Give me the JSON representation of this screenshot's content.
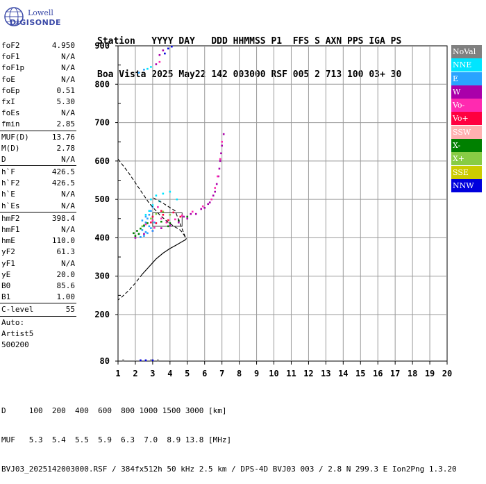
{
  "logo": {
    "top": "Lowell",
    "bottom": "DIGISONDE"
  },
  "header": {
    "line1": "Station   YYYY DAY   DDD HHMMSS P1  FFS S AXN PPS IGA PS",
    "line2": "Boa Vista 2025 May22 142 003000 RSF 005 2 713 100 03+ 30"
  },
  "params": {
    "group1": [
      {
        "label": "foF2",
        "value": "4.950"
      },
      {
        "label": "foF1",
        "value": "N/A"
      },
      {
        "label": "foF1p",
        "value": "N/A"
      },
      {
        "label": "foE",
        "value": "N/A"
      },
      {
        "label": "foEp",
        "value": "0.51"
      },
      {
        "label": "fxI",
        "value": "5.30"
      },
      {
        "label": "foEs",
        "value": "N/A"
      },
      {
        "label": "fmin",
        "value": "2.85"
      }
    ],
    "group2": [
      {
        "label": "MUF(D)",
        "value": "13.76"
      },
      {
        "label": "M(D)",
        "value": "2.78"
      },
      {
        "label": "D",
        "value": "N/A"
      }
    ],
    "group3": [
      {
        "label": "h`F",
        "value": "426.5"
      },
      {
        "label": "h`F2",
        "value": "426.5"
      },
      {
        "label": "h`E",
        "value": "N/A"
      },
      {
        "label": "h`Es",
        "value": "N/A"
      }
    ],
    "group4": [
      {
        "label": "hmF2",
        "value": "398.4"
      },
      {
        "label": "hmF1",
        "value": "N/A"
      },
      {
        "label": "hmE",
        "value": "110.0"
      },
      {
        "label": "yF2",
        "value": "61.3"
      },
      {
        "label": "yF1",
        "value": "N/A"
      },
      {
        "label": "yE",
        "value": "20.0"
      },
      {
        "label": "B0",
        "value": "85.6"
      },
      {
        "label": "B1",
        "value": "1.00"
      }
    ],
    "group5": [
      {
        "label": "C-level",
        "value": "55"
      }
    ]
  },
  "auto": {
    "line1": "Auto:",
    "line2": "Artist5",
    "line3": "500200"
  },
  "legend": [
    {
      "label": "NoVal",
      "color": "#808080"
    },
    {
      "label": "NNE",
      "color": "#00e5ff"
    },
    {
      "label": "E",
      "color": "#29a3ff"
    },
    {
      "label": "W",
      "color": "#aa00aa"
    },
    {
      "label": "Vo-",
      "color": "#ff2ab0"
    },
    {
      "label": "Vo+",
      "color": "#ff0040"
    },
    {
      "label": "SSW",
      "color": "#ffb0b0"
    },
    {
      "label": "X-",
      "color": "#008000"
    },
    {
      "label": "X+",
      "color": "#88cc44"
    },
    {
      "label": "SSE",
      "color": "#cccc00"
    },
    {
      "label": "NNW",
      "color": "#0000dd"
    }
  ],
  "footer": {
    "row1": "D     100  200  400  600  800 1000 1500 3000 [km]",
    "row2": "MUF   5.3  5.4  5.5  5.9  6.3  7.0  8.9 13.8 [MHz]",
    "row3": "BVJ03_2025142003000.RSF / 384fx512h 50 kHz 2.5 km / DPS-4D BVJ03 003 / 2.8 N 299.3 E Ion2Png 1.3.20"
  },
  "chart_data": {
    "type": "scatter",
    "title": "",
    "xlabel": "",
    "ylabel": "",
    "xlim": [
      1,
      20
    ],
    "ylim": [
      80,
      900
    ],
    "x_ticks": [
      1,
      2,
      3,
      4,
      5,
      6,
      7,
      8,
      9,
      10,
      11,
      12,
      13,
      14,
      15,
      16,
      17,
      18,
      19,
      20
    ],
    "y_ticks": [
      80,
      200,
      300,
      400,
      500,
      600,
      700,
      800,
      900
    ],
    "grid": true,
    "series": [
      {
        "name": "W",
        "color": "#aa00aa",
        "points": [
          [
            2.0,
            400
          ],
          [
            2.5,
            410
          ],
          [
            3.0,
            418
          ],
          [
            3.5,
            425
          ],
          [
            4.0,
            432
          ],
          [
            4.5,
            440
          ],
          [
            5.0,
            450
          ],
          [
            5.5,
            462
          ],
          [
            6.0,
            478
          ],
          [
            6.3,
            492
          ],
          [
            6.6,
            520
          ],
          [
            6.8,
            560
          ],
          [
            6.9,
            600
          ],
          [
            7.0,
            640
          ],
          [
            7.1,
            670
          ],
          [
            4.8,
            455
          ],
          [
            5.2,
            462
          ],
          [
            5.8,
            475
          ],
          [
            6.2,
            488
          ],
          [
            6.5,
            510
          ],
          [
            6.7,
            540
          ],
          [
            6.85,
            580
          ],
          [
            6.95,
            620
          ],
          [
            3.2,
            852
          ],
          [
            3.4,
            876
          ],
          [
            3.6,
            888
          ]
        ]
      },
      {
        "name": "Vo-",
        "color": "#ff2ab0",
        "points": [
          [
            3.8,
            440
          ],
          [
            4.3,
            448
          ],
          [
            4.7,
            458
          ],
          [
            5.3,
            468
          ],
          [
            5.9,
            482
          ],
          [
            6.4,
            500
          ],
          [
            6.6,
            530
          ],
          [
            6.75,
            560
          ],
          [
            6.9,
            605
          ],
          [
            7.0,
            650
          ],
          [
            3.0,
            445
          ],
          [
            3.5,
            450
          ],
          [
            2.8,
            470
          ],
          [
            3.3,
            480
          ],
          [
            2.6,
            435
          ],
          [
            3.1,
            426
          ],
          [
            3.4,
            858
          ]
        ]
      },
      {
        "name": "Vo+",
        "color": "#ff0040",
        "points": [
          [
            3.0,
            455
          ],
          [
            3.6,
            460
          ],
          [
            4.2,
            466
          ],
          [
            4.6,
            455
          ],
          [
            2.9,
            440
          ],
          [
            3.2,
            438
          ],
          [
            3.9,
            446
          ],
          [
            3.5,
            470
          ]
        ]
      },
      {
        "name": "E",
        "color": "#29a3ff",
        "points": [
          [
            2.2,
            410
          ],
          [
            2.4,
            420
          ],
          [
            2.5,
            430
          ],
          [
            2.6,
            440
          ],
          [
            2.7,
            450
          ],
          [
            2.8,
            460
          ],
          [
            2.9,
            470
          ],
          [
            3.0,
            480
          ],
          [
            2.5,
            405
          ],
          [
            2.7,
            412
          ],
          [
            2.3,
            402
          ],
          [
            2.9,
            425
          ],
          [
            3.0,
            418
          ],
          [
            2.6,
            415
          ],
          [
            2.8,
            430
          ],
          [
            3.1,
            440
          ],
          [
            2.4,
            445
          ],
          [
            2.6,
            455
          ],
          [
            2.2,
            830
          ],
          [
            2.5,
            838
          ]
        ]
      },
      {
        "name": "NNE",
        "color": "#00e5ff",
        "points": [
          [
            2.6,
            460
          ],
          [
            2.8,
            470
          ],
          [
            3.0,
            485
          ],
          [
            2.9,
            500
          ],
          [
            3.2,
            510
          ],
          [
            3.6,
            515
          ],
          [
            4.0,
            520
          ],
          [
            4.4,
            500
          ],
          [
            3.4,
            495
          ],
          [
            2.7,
            840
          ],
          [
            2.9,
            845
          ]
        ]
      },
      {
        "name": "X-",
        "color": "#008000",
        "points": [
          [
            1.9,
            412
          ],
          [
            2.1,
            418
          ],
          [
            2.3,
            424
          ],
          [
            2.5,
            432
          ],
          [
            2.7,
            438
          ],
          [
            2.0,
            405
          ],
          [
            2.2,
            410
          ],
          [
            3.5,
            442
          ],
          [
            4.0,
            438
          ],
          [
            4.5,
            445
          ],
          [
            5.0,
            455
          ],
          [
            3.9,
            430
          ]
        ]
      },
      {
        "name": "X+",
        "color": "#88cc44",
        "points": [
          [
            3.2,
            462
          ],
          [
            3.6,
            468
          ],
          [
            4.0,
            460
          ],
          [
            2.4,
            430
          ],
          [
            2.9,
            450
          ]
        ]
      },
      {
        "name": "NNW",
        "color": "#0000dd",
        "points": [
          [
            3.7,
            880
          ],
          [
            3.9,
            893
          ],
          [
            4.1,
            898
          ],
          [
            2.3,
            82
          ],
          [
            2.6,
            82
          ],
          [
            3.0,
            82
          ]
        ]
      },
      {
        "name": "NoVal",
        "color": "#808080",
        "points": [
          [
            1.3,
            82
          ],
          [
            2.9,
            82
          ],
          [
            3.3,
            82
          ]
        ]
      }
    ],
    "hm_profile": [
      [
        4.95,
        398.4
      ],
      [
        4.9,
        395
      ],
      [
        4.7,
        390
      ],
      [
        4.4,
        382
      ],
      [
        4.0,
        372
      ],
      [
        3.6,
        360
      ],
      [
        3.2,
        345
      ],
      [
        2.8,
        325
      ],
      [
        2.4,
        305
      ],
      [
        2.0,
        282
      ],
      [
        1.6,
        262
      ],
      [
        1.2,
        245
      ],
      [
        1.0,
        238
      ]
    ],
    "virtual_height_model": [
      [
        1.0,
        605
      ],
      [
        1.6,
        570
      ],
      [
        2.2,
        530
      ],
      [
        2.8,
        490
      ],
      [
        3.4,
        460
      ],
      [
        3.9,
        440
      ],
      [
        4.3,
        428
      ],
      [
        4.6,
        420
      ],
      [
        4.8,
        408
      ],
      [
        4.9,
        400
      ],
      [
        4.3,
        470
      ],
      [
        3.6,
        490
      ],
      [
        3.0,
        505
      ]
    ],
    "o_trace_box": [
      [
        3.0,
        430
      ],
      [
        4.7,
        465
      ]
    ]
  }
}
